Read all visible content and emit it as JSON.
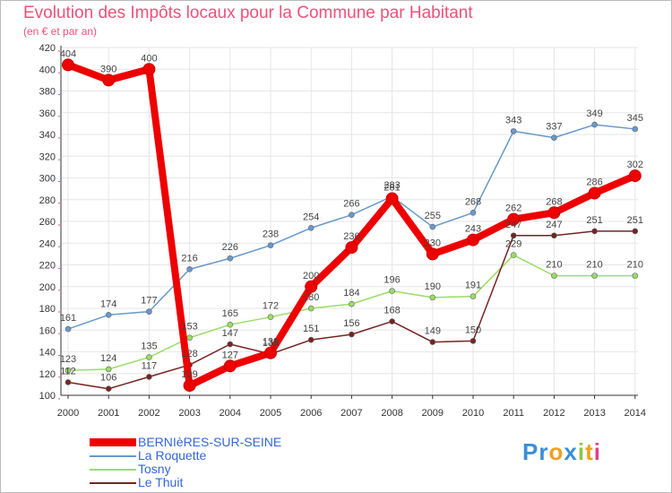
{
  "header": {
    "title": "Evolution des Impôts locaux pour la Commune par Habitant",
    "subtitle": "(en € et par an)"
  },
  "logo": {
    "text": "Proxiti"
  },
  "colors": {
    "title": "#f05078",
    "grid": "#e6e6e6",
    "axis": "#333333",
    "tick": "#f05078",
    "legend_text": "#3366dd"
  },
  "chart_data": {
    "type": "line",
    "title": "Evolution des Impôts locaux pour la Commune par Habitant",
    "subtitle": "(en € et par an)",
    "xlabel": "",
    "ylabel": "",
    "x": [
      2000,
      2001,
      2002,
      2003,
      2004,
      2005,
      2006,
      2007,
      2008,
      2009,
      2010,
      2011,
      2012,
      2013,
      2014
    ],
    "x_tick_labels": [
      "2000",
      "2001",
      "2002",
      "2003",
      "2004",
      "2005",
      "2006",
      "2007",
      "2008",
      "2009",
      "2010",
      "2011",
      "2012",
      "2013",
      "2014"
    ],
    "ylim": [
      100,
      420
    ],
    "y_ticks": [
      100,
      120,
      140,
      160,
      180,
      200,
      220,
      240,
      260,
      280,
      300,
      320,
      340,
      360,
      380,
      400,
      420
    ],
    "grid": true,
    "legend_position": "bottom-left",
    "series": [
      {
        "name": "BERNIèRES-SUR-SEINE",
        "color": "#ee0000",
        "values": [
          404,
          390,
          400,
          109,
          127,
          139,
          200,
          236,
          281,
          230,
          243,
          262,
          268,
          286,
          302
        ]
      },
      {
        "name": "La Roquette",
        "color": "#6699cc",
        "values": [
          161,
          174,
          177,
          216,
          226,
          238,
          254,
          266,
          283,
          255,
          268,
          343,
          337,
          349,
          345
        ]
      },
      {
        "name": "Tosny",
        "color": "#99dd66",
        "values": [
          123,
          124,
          135,
          153,
          165,
          172,
          180,
          184,
          196,
          190,
          191,
          229,
          210,
          210,
          210
        ]
      },
      {
        "name": "Le Thuit",
        "color": "#772222",
        "values": [
          112,
          106,
          117,
          128,
          147,
          138,
          151,
          156,
          168,
          149,
          150,
          247,
          247,
          251,
          251
        ]
      }
    ]
  }
}
